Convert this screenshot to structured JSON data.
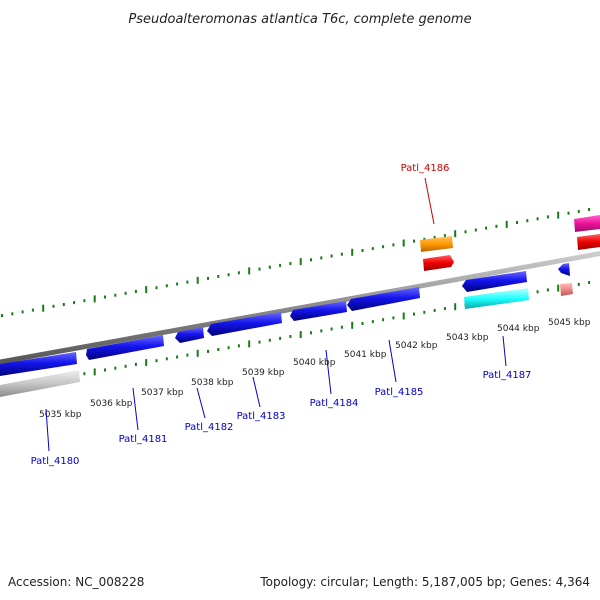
{
  "title": "Pseudoalteromonas atlantica T6c, complete genome",
  "footer": {
    "accession": "Accession: NC_008228",
    "topology": "Topology: circular; Length: 5,187,005 bp; Genes: 4,364"
  },
  "colors": {
    "forward_cds": "#1212e6",
    "reverse_cds": "#c4c4c4",
    "label_default": "#0000cc",
    "label_highlight": "#cc0000",
    "tick": "#1a7a1a",
    "backbone": "#8a8a8a",
    "orange_feature": "#ff9900",
    "red_feature": "#ee0000",
    "cyan_feature": "#22ffff",
    "magenta_feature": "#ee1199",
    "pink_feature": "#ee8888"
  },
  "ticks": [
    "5035 kbp",
    "5036 kbp",
    "5037 kbp",
    "5038 kbp",
    "5039 kbp",
    "5040 kbp",
    "5041 kbp",
    "5042 kbp",
    "5043 kbp",
    "5044 kbp",
    "5045 kbp"
  ],
  "genes": [
    {
      "label": "Patl_4180",
      "color": "#0000cc"
    },
    {
      "label": "Patl_4181",
      "color": "#0000cc"
    },
    {
      "label": "Patl_4182",
      "color": "#0000cc"
    },
    {
      "label": "Patl_4183",
      "color": "#0000cc"
    },
    {
      "label": "Patl_4184",
      "color": "#0000cc"
    },
    {
      "label": "Patl_4185",
      "color": "#0000cc"
    },
    {
      "label": "Patl_4186",
      "color": "#cc0000"
    },
    {
      "label": "Patl_4187",
      "color": "#0000cc"
    }
  ]
}
